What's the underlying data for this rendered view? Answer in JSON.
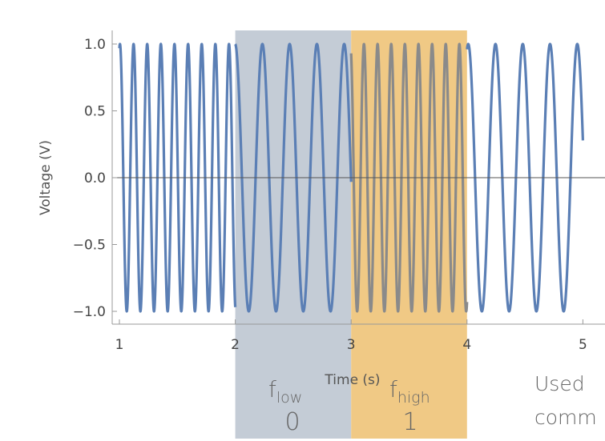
{
  "chart_data": {
    "type": "line",
    "title": "",
    "xlabel": "Time (s)",
    "ylabel": "Voltage (V)",
    "xlim": [
      0.98,
      5.06
    ],
    "ylim": [
      -1.1,
      1.1
    ],
    "x_ticks": [
      "1",
      "2",
      "3",
      "4",
      "5"
    ],
    "y_ticks": [
      "1.0",
      "0.5",
      "0.0",
      "−0.5",
      "−1.0"
    ],
    "grid": false,
    "legend": "none",
    "series": [
      {
        "line_color": "#5b7fb5",
        "overlap_color": "#8a8a8a",
        "segments": [
          {
            "x_start": 1,
            "x_end": 2,
            "frequency_hz": 8.5,
            "phase_cycles": 0.21
          },
          {
            "x_start": 2,
            "x_end": 3,
            "frequency_hz": 4.25,
            "phase_cycles": 0.255
          },
          {
            "x_start": 3,
            "x_end": 4,
            "frequency_hz": 8.5,
            "phase_cycles": 0.31
          },
          {
            "x_start": 4,
            "x_end": 5,
            "frequency_hz": 4.25,
            "phase_cycles": 0.205
          }
        ]
      }
    ],
    "bands": [
      {
        "x_start": 2,
        "x_end": 3,
        "color": "#c4ccd6",
        "label_base": "f",
        "label_sub": "low",
        "bit": "0"
      },
      {
        "x_start": 3,
        "x_end": 4,
        "color": "#f0c985",
        "label_base": "f",
        "label_sub": "high",
        "bit": "1"
      }
    ]
  },
  "side_note": {
    "line1": "Used",
    "line2": "comm"
  }
}
